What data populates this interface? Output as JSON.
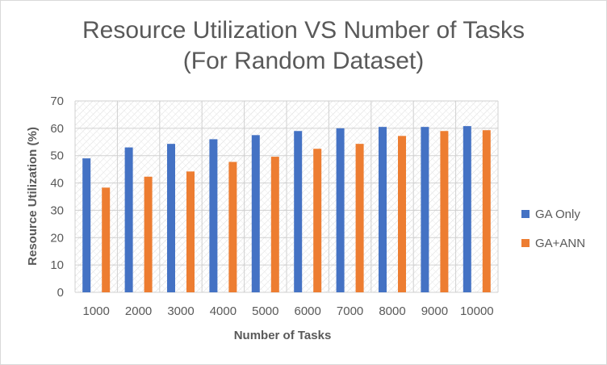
{
  "chart_data": {
    "type": "bar",
    "title_line1": "Resource Utilization VS Number of Tasks",
    "title_line2": "(For Random Dataset)",
    "xlabel": "Number of Tasks",
    "ylabel": "Resource Utilization (%)",
    "ylim": [
      0,
      70
    ],
    "yticks": [
      "0",
      "10",
      "20",
      "30",
      "40",
      "50",
      "60",
      "70"
    ],
    "grid": true,
    "legend_position": "right",
    "categories": [
      "1000",
      "2000",
      "3000",
      "4000",
      "5000",
      "6000",
      "7000",
      "8000",
      "9000",
      "10000"
    ],
    "series": [
      {
        "name": "GA Only",
        "color": "#4472c4",
        "values": [
          49,
          53,
          54.3,
          56,
          57.5,
          59,
          60,
          60.5,
          60.5,
          60.8
        ]
      },
      {
        "name": "GA+ANN",
        "color": "#ed7d31",
        "values": [
          38.3,
          42.3,
          44.2,
          47.7,
          49.6,
          52.5,
          54.3,
          57.2,
          59,
          59.3
        ]
      }
    ]
  }
}
